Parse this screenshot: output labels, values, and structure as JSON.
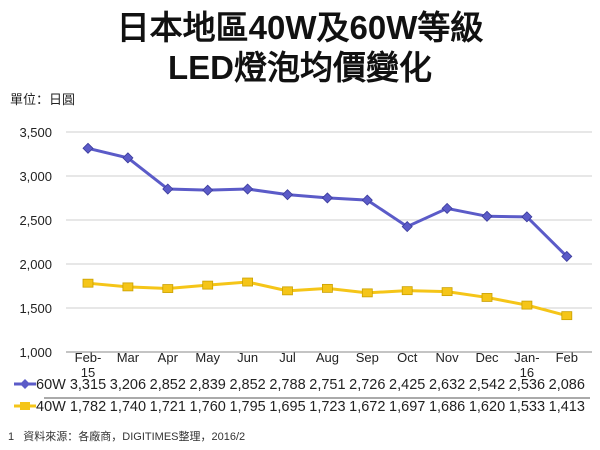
{
  "chart_data": {
    "type": "line",
    "title": [
      "日本地區40W及60W等級",
      "LED燈泡均價變化"
    ],
    "unit_label": "單位：日圓",
    "categories": [
      [
        "Feb-",
        "15"
      ],
      [
        "Mar"
      ],
      [
        "Apr"
      ],
      [
        "May"
      ],
      [
        "Jun"
      ],
      [
        "Jul"
      ],
      [
        "Aug"
      ],
      [
        "Sep"
      ],
      [
        "Oct"
      ],
      [
        "Nov"
      ],
      [
        "Dec"
      ],
      [
        "Jan-",
        "16"
      ],
      [
        "Feb"
      ]
    ],
    "ylim": [
      1000,
      3500
    ],
    "yticks": [
      "1,000",
      "1,500",
      "2,000",
      "2,500",
      "3,000",
      "3,500"
    ],
    "grid": true,
    "series": [
      {
        "name": "60W",
        "color": "#5b5bc8",
        "values": [
          3315,
          3206,
          2852,
          2839,
          2852,
          2788,
          2751,
          2726,
          2425,
          2632,
          2542,
          2536,
          2086
        ],
        "labels": [
          "3,315",
          "3,206",
          "2,852",
          "2,839",
          "2,852",
          "2,788",
          "2,751",
          "2,726",
          "2,425",
          "2,632",
          "2,542",
          "2,536",
          "2,086"
        ]
      },
      {
        "name": "40W",
        "color": "#f5c518",
        "values": [
          1782,
          1740,
          1721,
          1760,
          1795,
          1695,
          1723,
          1672,
          1697,
          1686,
          1620,
          1533,
          1413
        ],
        "labels": [
          "1,782",
          "1,740",
          "1,721",
          "1,760",
          "1,795",
          "1,695",
          "1,723",
          "1,672",
          "1,697",
          "1,686",
          "1,620",
          "1,533",
          "1,413"
        ]
      }
    ],
    "legend_placement": "data-table"
  },
  "footnote_number": "1",
  "source": "資料來源：各廠商，DIGITIMES整理，2016/2"
}
